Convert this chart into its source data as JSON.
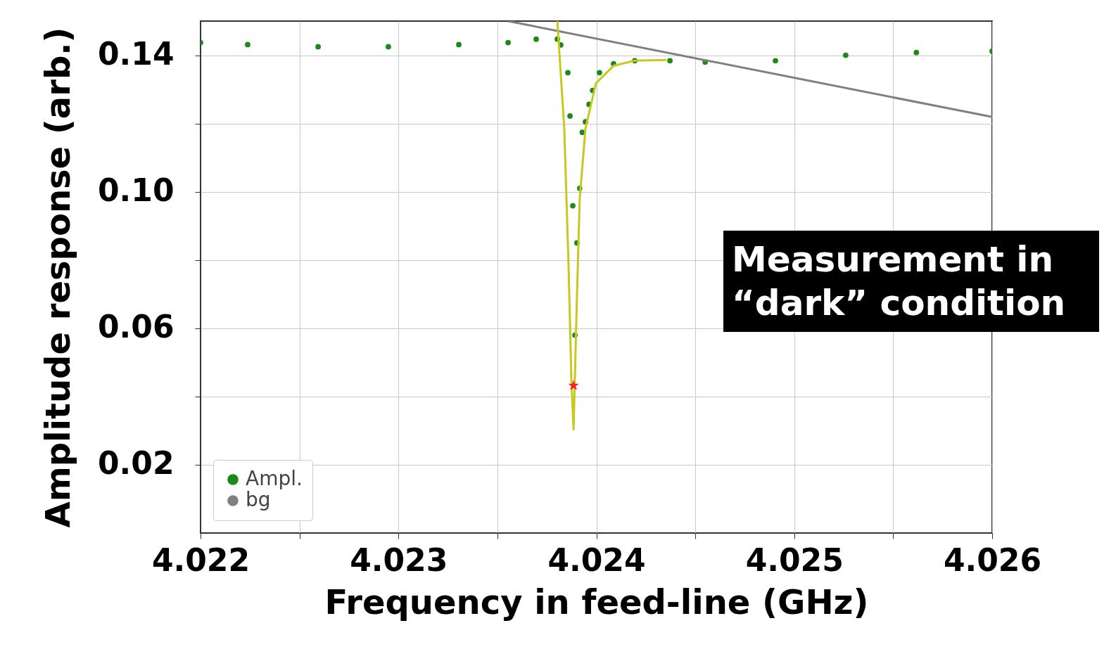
{
  "chart_data": {
    "type": "scatter",
    "xlabel": "Frequency in feed-line (GHz)",
    "ylabel": "Amplitude response (arb.)",
    "annotations": [
      "Measurement in “dark” condition"
    ],
    "xlim": [
      4.022,
      4.026
    ],
    "ylim": [
      0,
      0.15
    ],
    "xticks": [
      4.022,
      {
        "value": 4.0225,
        "label": null
      },
      4.023,
      {
        "value": 4.0235,
        "label": null
      },
      4.024,
      {
        "value": 4.0245,
        "label": null
      },
      4.025,
      {
        "value": 4.0255,
        "label": null
      },
      4.026
    ],
    "yticks": [
      0.02,
      {
        "value": 0.04,
        "label": null
      },
      0.06,
      {
        "value": 0.08,
        "label": null
      },
      {
        "value": 0.1,
        "label": "0.10"
      },
      {
        "value": 0.12,
        "label": null
      },
      0.14
    ],
    "grid": true,
    "legend": "bottom left",
    "series": [
      {
        "name": "Ampl.",
        "marker": "circle",
        "color": "#1a8a1a",
        "x": [
          4.022,
          4.022238,
          4.022594,
          4.022949,
          4.023305,
          4.023554,
          4.023696,
          4.023803,
          4.02382,
          4.023856,
          4.023867,
          4.023881,
          4.023892,
          4.023902,
          4.023916,
          4.023929,
          4.023945,
          4.023963,
          4.023981,
          4.024016,
          4.024087,
          4.024194,
          4.024372,
          4.02455,
          4.024905,
          4.02526,
          4.025617,
          4.026
        ],
        "values": [
          0.1437,
          0.1431,
          0.1425,
          0.1425,
          0.1431,
          0.1437,
          0.1447,
          0.1447,
          0.143,
          0.1349,
          0.1222,
          0.0959,
          0.058,
          0.085,
          0.101,
          0.1174,
          0.1205,
          0.1256,
          0.1297,
          0.1349,
          0.1375,
          0.1384,
          0.1384,
          0.138,
          0.1384,
          0.14,
          0.1408,
          0.1412
        ]
      },
      {
        "name": "bg",
        "type": "line",
        "color": "#808080",
        "x": [
          4.023554,
          4.026
        ],
        "values": [
          0.15,
          0.1219
        ]
      },
      {
        "type": "line",
        "color": "#c8c81e",
        "x": [
          4.023803,
          4.023838,
          4.02386,
          4.023874,
          4.023885,
          4.0239,
          4.023916,
          4.023945,
          4.023998,
          4.024087,
          4.024194,
          4.024354
        ],
        "values": [
          0.15,
          0.1185,
          0.0775,
          0.0447,
          0.0303,
          0.065,
          0.098,
          0.1185,
          0.1318,
          0.1369,
          0.1384,
          0.1386
        ]
      },
      {
        "type": "scatter",
        "marker": "star",
        "color": "#ff2020",
        "x": [
          4.023885
        ],
        "values": [
          0.0432
        ]
      }
    ]
  }
}
